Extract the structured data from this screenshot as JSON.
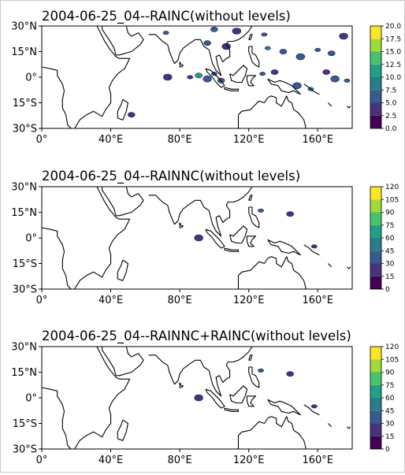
{
  "chart_data": [
    {
      "type": "heatmap",
      "title": "2004-06-25_04--RAINC(without levels)",
      "xlim": [
        0,
        180
      ],
      "ylim": [
        -30,
        30
      ],
      "x_ticks": [
        "0°",
        "40°E",
        "80°E",
        "120°E",
        "160°E"
      ],
      "y_ticks": [
        "30°N",
        "15°N",
        "0°",
        "15°S",
        "30°S"
      ],
      "colorbar": {
        "ticks": [
          "0.0",
          "2.5",
          "5.0",
          "7.5",
          "10.0",
          "12.5",
          "15.0",
          "17.5",
          "20.0"
        ],
        "colors": [
          "#440154",
          "#46337e",
          "#365c8d",
          "#277f8e",
          "#1fa187",
          "#4ac16d",
          "#a0da39",
          "#fde725"
        ]
      },
      "rain_cells": [
        {
          "lon": 72,
          "lat": 26,
          "level": 2
        },
        {
          "lon": 100,
          "lat": 28,
          "level": 2
        },
        {
          "lon": 113,
          "lat": 27,
          "level": 1
        },
        {
          "lon": 129,
          "lat": 25,
          "level": 2
        },
        {
          "lon": 96,
          "lat": 20,
          "level": 2
        },
        {
          "lon": 107,
          "lat": 18,
          "level": 1
        },
        {
          "lon": 131,
          "lat": 17,
          "level": 3
        },
        {
          "lon": 140,
          "lat": 15,
          "level": 2
        },
        {
          "lon": 150,
          "lat": 12,
          "level": 2
        },
        {
          "lon": 160,
          "lat": 16,
          "level": 2
        },
        {
          "lon": 168,
          "lat": 14,
          "level": 2
        },
        {
          "lon": 175,
          "lat": 24,
          "level": 1
        },
        {
          "lon": 86,
          "lat": 0,
          "level": 1
        },
        {
          "lon": 91,
          "lat": 1,
          "level": 4
        },
        {
          "lon": 96,
          "lat": -1,
          "level": 2
        },
        {
          "lon": 100,
          "lat": 2,
          "level": 2
        },
        {
          "lon": 104,
          "lat": -2,
          "level": 2
        },
        {
          "lon": 73,
          "lat": 0,
          "level": 1
        },
        {
          "lon": 128,
          "lat": 2,
          "level": 2
        },
        {
          "lon": 135,
          "lat": 3,
          "level": 1
        },
        {
          "lon": 148,
          "lat": -5,
          "level": 2
        },
        {
          "lon": 156,
          "lat": -7,
          "level": 3
        },
        {
          "lon": 165,
          "lat": 3,
          "level": 1
        },
        {
          "lon": 170,
          "lat": -1,
          "level": 2
        },
        {
          "lon": 177,
          "lat": -2,
          "level": 2
        },
        {
          "lon": 52,
          "lat": -22,
          "level": 1
        }
      ]
    },
    {
      "type": "heatmap",
      "title": "2004-06-25_04--RAINNC(without levels)",
      "xlim": [
        0,
        180
      ],
      "ylim": [
        -30,
        30
      ],
      "x_ticks": [
        "0°",
        "40°E",
        "80°E",
        "120°E",
        "160°E"
      ],
      "y_ticks": [
        "30°N",
        "15°N",
        "0°",
        "15°S",
        "30°S"
      ],
      "colorbar": {
        "ticks": [
          "0",
          "15",
          "30",
          "45",
          "60",
          "75",
          "90",
          "105",
          "120"
        ],
        "colors": [
          "#440154",
          "#46337e",
          "#365c8d",
          "#277f8e",
          "#1fa187",
          "#4ac16d",
          "#a0da39",
          "#fde725"
        ]
      },
      "rain_cells": [
        {
          "lon": 127,
          "lat": 16,
          "level": 2
        },
        {
          "lon": 144,
          "lat": 14,
          "level": 1
        },
        {
          "lon": 91,
          "lat": 0,
          "level": 1
        },
        {
          "lon": 158,
          "lat": -5,
          "level": 1
        }
      ]
    },
    {
      "type": "heatmap",
      "title": "2004-06-25_04--RAINNC+RAINC(without levels)",
      "xlim": [
        0,
        180
      ],
      "ylim": [
        -30,
        30
      ],
      "x_ticks": [
        "0°",
        "40°E",
        "80°E",
        "120°E",
        "160°E"
      ],
      "y_ticks": [
        "30°N",
        "15°N",
        "0°",
        "15°S",
        "30°S"
      ],
      "colorbar": {
        "ticks": [
          "0",
          "15",
          "30",
          "45",
          "60",
          "75",
          "90",
          "105",
          "120"
        ],
        "colors": [
          "#440154",
          "#46337e",
          "#365c8d",
          "#277f8e",
          "#1fa187",
          "#4ac16d",
          "#a0da39",
          "#fde725"
        ]
      },
      "rain_cells": [
        {
          "lon": 127,
          "lat": 16,
          "level": 2
        },
        {
          "lon": 144,
          "lat": 14,
          "level": 1
        },
        {
          "lon": 91,
          "lat": 0,
          "level": 1
        },
        {
          "lon": 158,
          "lat": -5,
          "level": 1
        }
      ]
    }
  ]
}
